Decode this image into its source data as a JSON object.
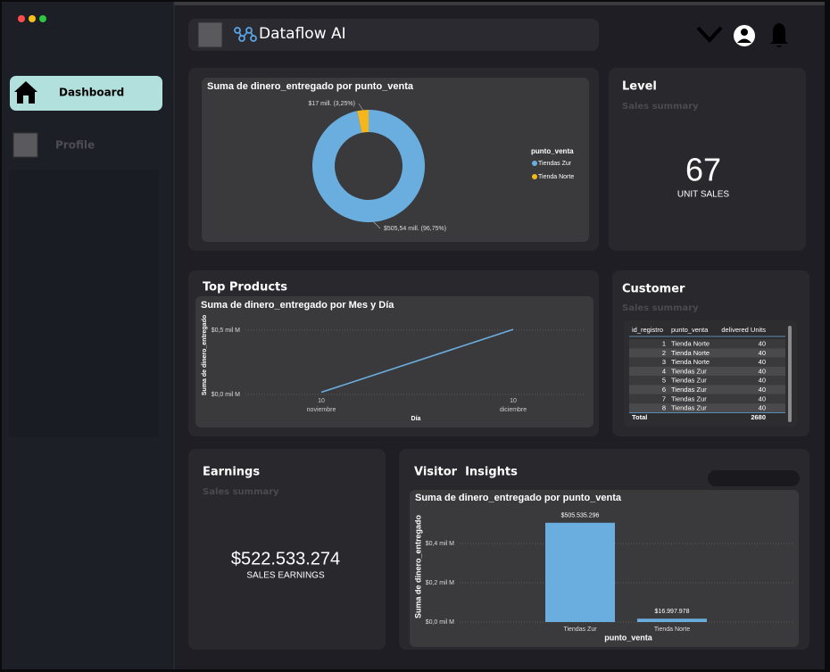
{
  "sidebar": {
    "items": [
      {
        "label": "Dashboard"
      },
      {
        "label": "Profile"
      }
    ]
  },
  "header": {
    "brand": "Dataflow AI"
  },
  "cards": {
    "level": {
      "title": "Level",
      "subtitle": "Sales summary",
      "value": "67",
      "caption": "UNIT SALES"
    },
    "top_products": {
      "title": "Top Products"
    },
    "customer": {
      "title": "Customer",
      "subtitle": "Sales summary"
    },
    "earnings": {
      "title": "Earnings",
      "subtitle": "Sales summary",
      "value": "$522.533.274",
      "caption": "SALES EARNINGS"
    },
    "visitor_insights": {
      "title": "Visitor  Insights"
    }
  },
  "table": {
    "columns": [
      "id_registro",
      "punto_venta",
      "delivered Units"
    ],
    "rows": [
      [
        "1",
        "Tienda Norte",
        "40"
      ],
      [
        "2",
        "Tienda Norte",
        "40"
      ],
      [
        "3",
        "Tienda Norte",
        "40"
      ],
      [
        "4",
        "Tiendas Zur",
        "40"
      ],
      [
        "5",
        "Tiendas Zur",
        "40"
      ],
      [
        "6",
        "Tiendas Zur",
        "40"
      ],
      [
        "7",
        "Tiendas Zur",
        "40"
      ],
      [
        "8",
        "Tiendas Zur",
        "40"
      ]
    ],
    "total": {
      "label": "Total",
      "value": "2680"
    }
  },
  "chart_data": [
    {
      "type": "pie",
      "title": "Suma de dinero_entregado por punto_venta",
      "donut": true,
      "legend_title": "punto_venta",
      "categories": [
        "Tiendas Zur",
        "Tienda Norte"
      ],
      "values": [
        505.54,
        17
      ],
      "value_labels": [
        "$505,54 mill. (96,75%)",
        "$17 mill. (3,25%)"
      ],
      "colors": [
        "#6aaee0",
        "#f5b51b"
      ]
    },
    {
      "type": "line",
      "title": "Suma de dinero_entregado por Mes y Día",
      "ylabel": "Suma de dinero_entregado",
      "xlabel": "Día",
      "categories": [
        "noviembre",
        "diciembre"
      ],
      "category_days": [
        "10",
        "10"
      ],
      "values": [
        0.017,
        0.506
      ],
      "color": "#6aaee0",
      "ylim": [
        0,
        0.55
      ],
      "yticks": [
        {
          "value": 0,
          "label": "$0,0 mil M"
        },
        {
          "value": 0.5,
          "label": "$0,5 mil M"
        }
      ],
      "grid": true
    },
    {
      "type": "bar",
      "title": "Suma de dinero_entregado por punto_venta",
      "ylabel": "Suma de dinero_entregado",
      "xlabel": "punto_venta",
      "categories": [
        "Tiendas Zur",
        "Tienda Norte"
      ],
      "values": [
        0.505535296,
        0.016997978
      ],
      "value_labels": [
        "$505.535.296",
        "$16.997.978"
      ],
      "color": "#6aaee0",
      "ylim": [
        0,
        0.55
      ],
      "yticks": [
        {
          "value": 0,
          "label": "$0,0 mil M"
        },
        {
          "value": 0.2,
          "label": "$0,2 mil M"
        },
        {
          "value": 0.4,
          "label": "$0,4 mil M"
        }
      ],
      "grid": true
    }
  ]
}
